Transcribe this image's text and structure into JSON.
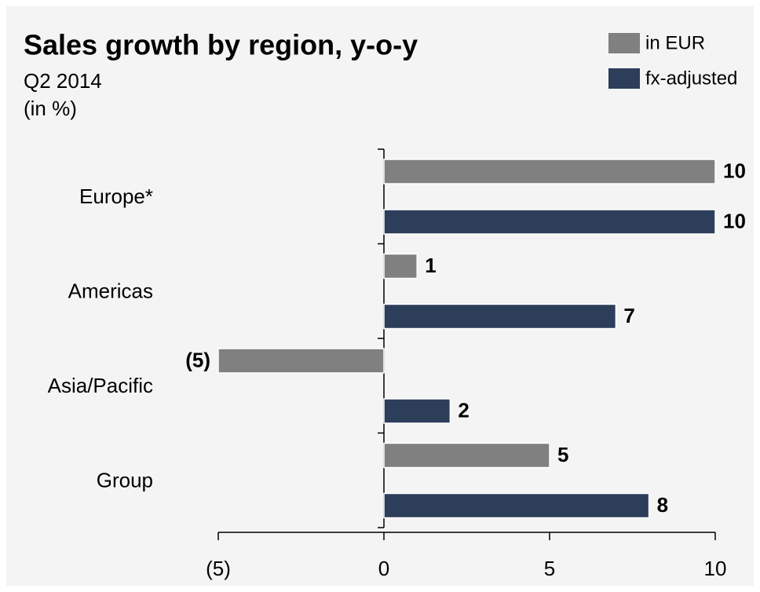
{
  "chart_data": {
    "type": "bar",
    "orientation": "horizontal",
    "title": "Sales growth by region, y-o-y",
    "subtitle": [
      "Q2 2014",
      "(in %)"
    ],
    "categories": [
      "Europe*",
      "Americas",
      "Asia/Pacific",
      "Group"
    ],
    "series": [
      {
        "name": "in EUR",
        "color": "#808080",
        "values": [
          10,
          1,
          -5,
          5
        ],
        "value_labels": [
          "10",
          "1",
          "(5)",
          "5"
        ]
      },
      {
        "name": "fx-adjusted",
        "color": "#2d3e5a",
        "values": [
          10,
          7,
          2,
          8
        ]
      }
    ],
    "xlim": [
      -5,
      10
    ],
    "xticks": [
      {
        "value": -5,
        "label": "(5)"
      },
      0,
      5,
      10
    ],
    "legend": "top-right"
  }
}
